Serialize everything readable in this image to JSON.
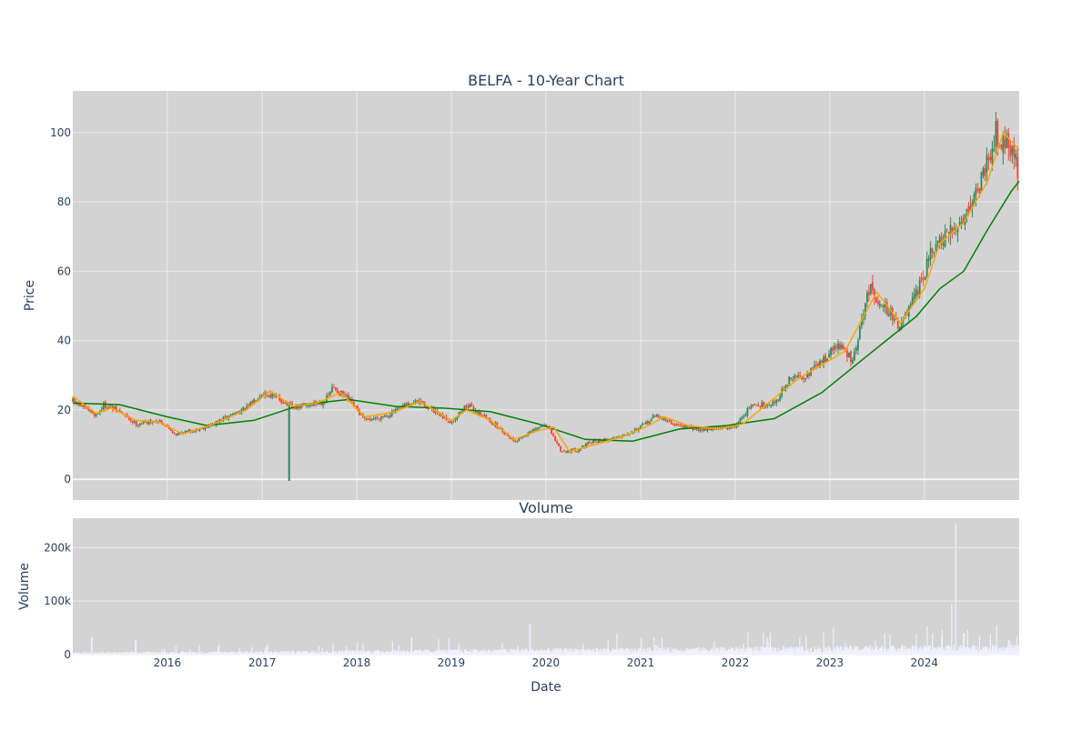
{
  "chart_data": [
    {
      "type": "candlestick",
      "title": "BELFA - 10-Year Chart",
      "xlabel": "",
      "ylabel": "Price",
      "x_range": [
        "2015-01-01",
        "2025-01-01"
      ],
      "ylim": [
        -6,
        112
      ],
      "y_ticks": [
        0,
        20,
        40,
        60,
        80,
        100
      ],
      "grid": true,
      "legend": "none",
      "colors": {
        "background": "#d3d3d3",
        "grid": "#ebebeb",
        "up": "#2e8b57",
        "down": "#ff4136",
        "sma_short": "#ffa500",
        "sma_long": "#008000",
        "text": "#2a3f5f"
      },
      "series": [
        {
          "kind": "ohlc",
          "approx_close_path": [
            [
              "2015-01-01",
              22.5
            ],
            [
              "2015-04-01",
              18.5
            ],
            [
              "2015-05-01",
              21.5
            ],
            [
              "2015-07-01",
              19.5
            ],
            [
              "2015-09-01",
              16.0
            ],
            [
              "2015-12-01",
              17.0
            ],
            [
              "2016-02-01",
              13.0
            ],
            [
              "2016-05-01",
              14.5
            ],
            [
              "2016-07-01",
              16.0
            ],
            [
              "2016-09-01",
              18.5
            ],
            [
              "2016-11-01",
              20.5
            ],
            [
              "2017-01-01",
              25.0
            ],
            [
              "2017-03-01",
              23.5
            ],
            [
              "2017-05-01",
              20.5
            ],
            [
              "2017-07-01",
              21.5
            ],
            [
              "2017-09-01",
              22.5
            ],
            [
              "2017-10-01",
              26.5
            ],
            [
              "2017-12-01",
              23.0
            ],
            [
              "2018-02-01",
              17.0
            ],
            [
              "2018-05-01",
              18.5
            ],
            [
              "2018-07-01",
              21.0
            ],
            [
              "2018-09-01",
              22.5
            ],
            [
              "2018-11-01",
              19.0
            ],
            [
              "2019-01-01",
              16.5
            ],
            [
              "2019-03-01",
              21.5
            ],
            [
              "2019-05-01",
              18.5
            ],
            [
              "2019-07-01",
              15.0
            ],
            [
              "2019-09-01",
              11.0
            ],
            [
              "2019-11-01",
              13.5
            ],
            [
              "2020-01-01",
              16.0
            ],
            [
              "2020-03-01",
              8.0
            ],
            [
              "2020-05-01",
              8.5
            ],
            [
              "2020-07-01",
              11.0
            ],
            [
              "2020-09-01",
              11.5
            ],
            [
              "2020-11-01",
              13.0
            ],
            [
              "2021-01-01",
              15.0
            ],
            [
              "2021-03-01",
              18.5
            ],
            [
              "2021-05-01",
              16.0
            ],
            [
              "2021-08-01",
              14.5
            ],
            [
              "2021-11-01",
              14.5
            ],
            [
              "2022-01-01",
              15.5
            ],
            [
              "2022-03-01",
              21.0
            ],
            [
              "2022-06-01",
              22.0
            ],
            [
              "2022-08-01",
              29.0
            ],
            [
              "2022-10-01",
              30.0
            ],
            [
              "2022-12-01",
              34.0
            ],
            [
              "2023-02-01",
              39.0
            ],
            [
              "2023-04-01",
              34.0
            ],
            [
              "2023-06-01",
              55.0
            ],
            [
              "2023-08-01",
              50.0
            ],
            [
              "2023-10-01",
              44.0
            ],
            [
              "2023-12-01",
              53.0
            ],
            [
              "2024-02-01",
              66.0
            ],
            [
              "2024-04-01",
              70.0
            ],
            [
              "2024-06-01",
              76.0
            ],
            [
              "2024-08-01",
              85.0
            ],
            [
              "2024-10-01",
              100.0
            ],
            [
              "2024-12-01",
              96.0
            ],
            [
              "2025-01-01",
              88.0
            ]
          ]
        },
        {
          "kind": "line",
          "color": "orange",
          "values": [
            [
              "2015-01-01",
              24.0
            ],
            [
              "2015-04-01",
              19.0
            ],
            [
              "2015-06-01",
              20.5
            ],
            [
              "2015-09-01",
              17.0
            ],
            [
              "2015-12-01",
              16.5
            ],
            [
              "2016-03-01",
              13.0
            ],
            [
              "2016-07-01",
              16.0
            ],
            [
              "2016-11-01",
              20.0
            ],
            [
              "2017-02-01",
              25.5
            ],
            [
              "2017-05-01",
              21.0
            ],
            [
              "2017-08-01",
              22.0
            ],
            [
              "2017-11-01",
              25.0
            ],
            [
              "2018-02-01",
              18.0
            ],
            [
              "2018-06-01",
              19.5
            ],
            [
              "2018-09-01",
              22.5
            ],
            [
              "2019-01-01",
              17.0
            ],
            [
              "2019-03-01",
              20.0
            ],
            [
              "2019-06-01",
              17.0
            ],
            [
              "2019-09-01",
              11.5
            ],
            [
              "2019-12-01",
              14.0
            ],
            [
              "2020-02-01",
              15.0
            ],
            [
              "2020-04-01",
              8.0
            ],
            [
              "2020-08-01",
              10.5
            ],
            [
              "2020-11-01",
              12.5
            ],
            [
              "2021-02-01",
              15.5
            ],
            [
              "2021-04-01",
              18.0
            ],
            [
              "2021-07-01",
              15.5
            ],
            [
              "2021-11-01",
              14.5
            ],
            [
              "2022-02-01",
              16.0
            ],
            [
              "2022-05-01",
              21.5
            ],
            [
              "2022-09-01",
              29.0
            ],
            [
              "2022-12-01",
              33.0
            ],
            [
              "2023-03-01",
              37.0
            ],
            [
              "2023-07-01",
              54.0
            ],
            [
              "2023-10-01",
              45.0
            ],
            [
              "2024-01-01",
              55.0
            ],
            [
              "2024-03-01",
              68.0
            ],
            [
              "2024-06-01",
              74.0
            ],
            [
              "2024-09-01",
              86.0
            ],
            [
              "2024-11-01",
              100.0
            ],
            [
              "2025-01-01",
              95.0
            ]
          ]
        },
        {
          "kind": "line",
          "color": "green",
          "values": [
            [
              "2015-01-01",
              22.0
            ],
            [
              "2015-07-01",
              21.5
            ],
            [
              "2016-01-01",
              18.0
            ],
            [
              "2016-06-01",
              15.5
            ],
            [
              "2016-12-01",
              17.0
            ],
            [
              "2017-06-01",
              21.5
            ],
            [
              "2017-12-01",
              23.0
            ],
            [
              "2018-06-01",
              21.0
            ],
            [
              "2018-12-01",
              20.5
            ],
            [
              "2019-06-01",
              19.5
            ],
            [
              "2019-12-01",
              16.0
            ],
            [
              "2020-06-01",
              11.5
            ],
            [
              "2020-12-01",
              11.0
            ],
            [
              "2021-06-01",
              14.5
            ],
            [
              "2021-12-01",
              15.5
            ],
            [
              "2022-06-01",
              17.5
            ],
            [
              "2022-12-01",
              25.0
            ],
            [
              "2023-06-01",
              36.0
            ],
            [
              "2023-12-01",
              47.0
            ],
            [
              "2024-03-01",
              55.0
            ],
            [
              "2024-06-01",
              60.0
            ],
            [
              "2024-09-01",
              72.0
            ],
            [
              "2024-12-01",
              83.0
            ],
            [
              "2025-01-01",
              86.0
            ]
          ]
        }
      ],
      "spike": {
        "date": "2017-04-15",
        "low": -0.5,
        "high": 21.5
      }
    },
    {
      "type": "bar",
      "title": "Volume",
      "xlabel": "Date",
      "ylabel": "Volume",
      "ylim": [
        0,
        255000
      ],
      "y_ticks": [
        0,
        100000,
        200000
      ],
      "y_tick_labels": [
        "0",
        "100k",
        "200k"
      ],
      "x_ticks": [
        "2016-01-01",
        "2017-01-01",
        "2018-01-01",
        "2019-01-01",
        "2020-01-01",
        "2021-01-01",
        "2022-01-01",
        "2023-01-01",
        "2024-01-01"
      ],
      "x_tick_labels": [
        "2016",
        "2017",
        "2018",
        "2019",
        "2020",
        "2021",
        "2022",
        "2023",
        "2024"
      ],
      "grid": true,
      "colors": {
        "bar": "#f0f0ff",
        "background": "#d3d3d3"
      },
      "peaks": [
        [
          "2015-03-15",
          33000
        ],
        [
          "2015-09-01",
          28000
        ],
        [
          "2017-01-15",
          14000
        ],
        [
          "2017-10-01",
          20000
        ],
        [
          "2018-08-01",
          33000
        ],
        [
          "2019-11-01",
          58000
        ],
        [
          "2020-10-01",
          40000
        ],
        [
          "2021-03-01",
          18000
        ],
        [
          "2022-02-01",
          20000
        ],
        [
          "2022-10-01",
          35000
        ],
        [
          "2023-01-15",
          51000
        ],
        [
          "2023-08-01",
          40000
        ],
        [
          "2024-02-01",
          40000
        ],
        [
          "2024-04-15",
          95000
        ],
        [
          "2024-05-01",
          245000
        ],
        [
          "2024-06-01",
          40000
        ],
        [
          "2024-08-01",
          35000
        ]
      ]
    }
  ]
}
